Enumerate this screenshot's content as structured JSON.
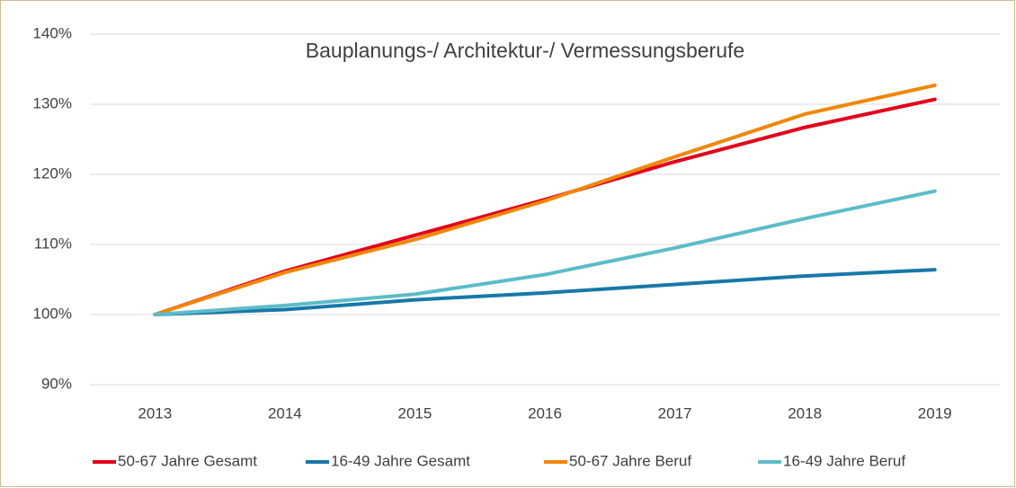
{
  "chart_data": {
    "type": "line",
    "title": "Bauplanungs-/ Architektur-/  Vermessungsberufe",
    "categories": [
      "2013",
      "2014",
      "2015",
      "2016",
      "2017",
      "2018",
      "2019"
    ],
    "series": [
      {
        "name": "50-67 Jahre Gesamt",
        "color": "#e2001a",
        "values": [
          100,
          106.2,
          111.3,
          116.4,
          121.8,
          126.7,
          130.7
        ]
      },
      {
        "name": "16-49 Jahre Gesamt",
        "color": "#1878a8",
        "values": [
          100,
          100.7,
          102.1,
          103.1,
          104.3,
          105.5,
          106.4
        ]
      },
      {
        "name": "50-67 Jahre Beruf",
        "color": "#f0870a",
        "values": [
          100,
          106.0,
          110.7,
          116.2,
          122.5,
          128.6,
          132.7
        ]
      },
      {
        "name": "16-49 Jahre Beruf",
        "color": "#5cbcc8",
        "values": [
          100,
          101.3,
          102.9,
          105.7,
          109.5,
          113.7,
          117.6
        ]
      }
    ],
    "ylim": [
      90,
      140
    ],
    "yticks": [
      {
        "value": 90,
        "label": "90%"
      },
      {
        "value": 100,
        "label": "100%"
      },
      {
        "value": 110,
        "label": "110%"
      },
      {
        "value": 120,
        "label": "120%"
      },
      {
        "value": 130,
        "label": "130%"
      },
      {
        "value": 140,
        "label": "140%"
      }
    ],
    "grid": true,
    "legend": "bottom"
  }
}
